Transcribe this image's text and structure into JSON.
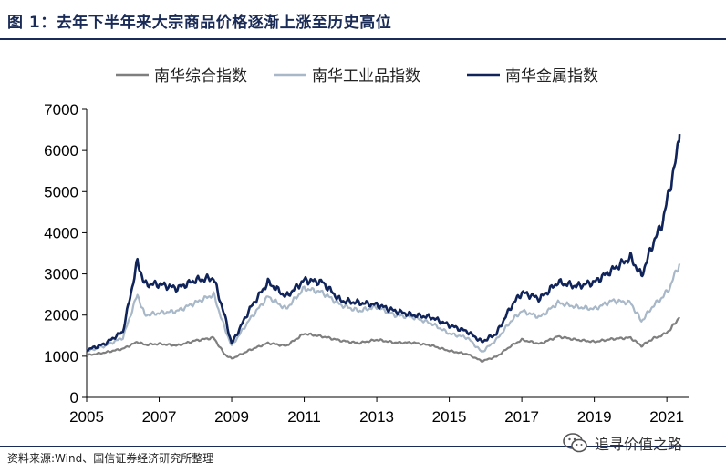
{
  "header": {
    "title": "图 1：去年下半年来大宗商品价格逐渐上涨至历史高位"
  },
  "footer": {
    "source": "资料来源:Wind、国信证券经济研究所整理",
    "watermark": "追寻价值之路"
  },
  "chart_data": {
    "type": "line",
    "ylim": [
      0,
      7000
    ],
    "y_ticks": [
      "0",
      "1000",
      "2000",
      "3000",
      "4000",
      "5000",
      "6000",
      "7000"
    ],
    "xlim": [
      2005,
      2021.6
    ],
    "x_ticks": [
      "2005",
      "2007",
      "2009",
      "2011",
      "2013",
      "2015",
      "2017",
      "2019",
      "2021"
    ],
    "legend_position": "top",
    "grid": false,
    "series": [
      {
        "name": "南华综合指数",
        "color": "#7f7f7f",
        "x": [
          2005.0,
          2005.5,
          2006.0,
          2006.4,
          2006.6,
          2007.0,
          2007.5,
          2008.0,
          2008.5,
          2008.8,
          2009.0,
          2009.5,
          2010.0,
          2010.5,
          2011.0,
          2011.5,
          2012.0,
          2012.5,
          2013.0,
          2013.5,
          2014.0,
          2014.5,
          2015.0,
          2015.5,
          2015.9,
          2016.3,
          2016.7,
          2017.0,
          2017.5,
          2018.0,
          2018.5,
          2019.0,
          2019.5,
          2020.0,
          2020.3,
          2020.6,
          2020.9,
          2021.1,
          2021.2,
          2021.35
        ],
        "values": [
          1020,
          1090,
          1180,
          1350,
          1280,
          1300,
          1260,
          1380,
          1450,
          1050,
          940,
          1150,
          1320,
          1250,
          1550,
          1480,
          1380,
          1320,
          1400,
          1330,
          1330,
          1260,
          1130,
          1050,
          880,
          990,
          1250,
          1400,
          1300,
          1480,
          1400,
          1350,
          1420,
          1450,
          1250,
          1420,
          1520,
          1650,
          1780,
          1950
        ]
      },
      {
        "name": "南华工业品指数",
        "color": "#a8b8c8",
        "x": [
          2005.0,
          2005.5,
          2006.0,
          2006.4,
          2006.6,
          2007.0,
          2007.5,
          2008.0,
          2008.5,
          2008.8,
          2009.0,
          2009.5,
          2010.0,
          2010.5,
          2011.0,
          2011.5,
          2012.0,
          2012.5,
          2013.0,
          2013.5,
          2014.0,
          2014.5,
          2015.0,
          2015.5,
          2015.9,
          2016.3,
          2016.7,
          2017.0,
          2017.5,
          2018.0,
          2018.5,
          2019.0,
          2019.5,
          2020.0,
          2020.3,
          2020.6,
          2020.9,
          2021.1,
          2021.2,
          2021.35
        ],
        "values": [
          1120,
          1250,
          1450,
          2500,
          2000,
          2050,
          2100,
          2300,
          2500,
          1700,
          1250,
          1900,
          2450,
          2150,
          2650,
          2550,
          2250,
          2100,
          2200,
          2000,
          1950,
          1800,
          1550,
          1450,
          1100,
          1400,
          1850,
          2100,
          1950,
          2300,
          2200,
          2150,
          2350,
          2300,
          1850,
          2200,
          2450,
          2700,
          2950,
          3250
        ]
      },
      {
        "name": "南华金属指数",
        "color": "#10245a",
        "x": [
          2005.0,
          2005.5,
          2006.0,
          2006.4,
          2006.6,
          2007.0,
          2007.5,
          2008.0,
          2008.5,
          2008.8,
          2009.0,
          2009.5,
          2010.0,
          2010.5,
          2011.0,
          2011.5,
          2012.0,
          2012.5,
          2013.0,
          2013.5,
          2014.0,
          2014.5,
          2015.0,
          2015.5,
          2015.9,
          2016.3,
          2016.7,
          2017.0,
          2017.5,
          2018.0,
          2018.5,
          2019.0,
          2019.5,
          2020.0,
          2020.3,
          2020.6,
          2020.9,
          2021.1,
          2021.2,
          2021.35
        ],
        "values": [
          1150,
          1300,
          1600,
          3300,
          2750,
          2750,
          2650,
          2850,
          2900,
          2000,
          1300,
          2150,
          2800,
          2450,
          2850,
          2800,
          2350,
          2300,
          2250,
          2100,
          2000,
          1950,
          1750,
          1600,
          1350,
          1550,
          2200,
          2550,
          2400,
          2800,
          2700,
          2800,
          3100,
          3400,
          2950,
          3700,
          4300,
          5200,
          5500,
          6400
        ]
      }
    ]
  }
}
